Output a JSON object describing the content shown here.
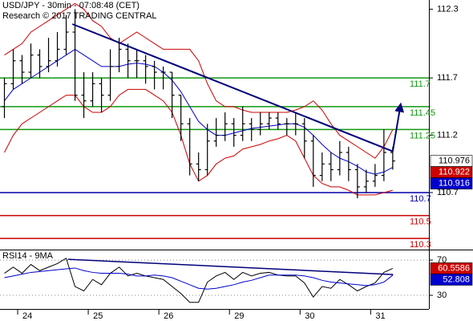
{
  "chart_data": [
    {
      "type": "ohlc",
      "title": "USD/JPY - 30min - 07:08:48 (CET)",
      "subtitle": "Research © 2017 TRADING CENTRAL",
      "x": [
        0,
        1,
        2,
        3,
        4,
        5,
        6,
        7,
        8,
        9,
        10,
        11,
        12,
        13,
        14,
        15,
        16,
        17,
        18,
        19,
        20,
        21,
        22,
        23,
        24,
        25,
        26,
        27,
        28,
        29,
        30,
        31,
        32,
        33,
        34,
        35,
        36,
        37,
        38,
        39,
        40,
        41,
        42,
        43,
        44
      ],
      "xlim": [
        -0.5,
        48.1
      ],
      "xticks": [
        {
          "value": 1.5,
          "label": "24"
        },
        {
          "value": 9.5,
          "label": "25"
        },
        {
          "value": 17.5,
          "label": "26"
        },
        {
          "value": 25.5,
          "label": "29"
        },
        {
          "value": 33.5,
          "label": "30"
        },
        {
          "value": 41.5,
          "label": "31"
        }
      ],
      "ylim": [
        110.21,
        112.38
      ],
      "yticks": [
        110.7,
        111.2,
        111.7,
        112.3
      ],
      "color": "#000000",
      "open": [
        111.45,
        111.65,
        111.85,
        111.75,
        111.9,
        111.8,
        111.85,
        111.95,
        112.1,
        111.55,
        111.5,
        111.65,
        111.55,
        111.8,
        111.95,
        111.85,
        111.85,
        111.8,
        111.75,
        111.75,
        111.55,
        111.3,
        110.95,
        110.9,
        111.15,
        111.2,
        111.3,
        111.2,
        111.3,
        111.25,
        111.3,
        111.35,
        111.3,
        111.3,
        111.3,
        111.15,
        110.85,
        110.95,
        110.9,
        111.05,
        110.9,
        110.75,
        110.8,
        110.85,
        111.05
      ],
      "high": [
        111.7,
        111.95,
        111.9,
        112.0,
        111.95,
        112.05,
        112.1,
        112.25,
        112.3,
        111.75,
        111.75,
        111.7,
        111.95,
        112.05,
        112.0,
        111.95,
        111.9,
        111.85,
        111.8,
        111.75,
        111.55,
        111.35,
        111.05,
        111.3,
        111.35,
        111.4,
        111.35,
        111.45,
        111.35,
        111.4,
        111.4,
        111.4,
        111.35,
        111.4,
        111.35,
        111.2,
        111.05,
        111.05,
        111.15,
        111.1,
        110.95,
        110.9,
        110.95,
        111.25,
        111.1
      ],
      "low": [
        111.35,
        111.6,
        111.65,
        111.7,
        111.7,
        111.75,
        111.8,
        111.9,
        111.5,
        111.35,
        111.45,
        111.4,
        111.5,
        111.75,
        111.7,
        111.7,
        111.65,
        111.6,
        111.6,
        111.35,
        111.15,
        110.85,
        110.8,
        110.85,
        111.1,
        111.15,
        111.1,
        111.15,
        111.15,
        111.2,
        111.25,
        111.25,
        111.2,
        111.2,
        111.0,
        110.75,
        110.8,
        110.8,
        110.85,
        110.8,
        110.65,
        110.7,
        110.75,
        110.8,
        110.9
      ],
      "close": [
        111.65,
        111.85,
        111.75,
        111.9,
        111.8,
        111.85,
        111.95,
        112.1,
        111.55,
        111.5,
        111.65,
        111.55,
        111.8,
        111.95,
        111.85,
        111.85,
        111.8,
        111.75,
        111.75,
        111.55,
        111.3,
        110.95,
        110.9,
        111.15,
        111.2,
        111.3,
        111.2,
        111.3,
        111.25,
        111.3,
        111.35,
        111.3,
        111.3,
        111.3,
        111.15,
        110.85,
        110.95,
        110.9,
        111.05,
        110.9,
        110.75,
        110.8,
        110.85,
        111.05,
        110.976
      ],
      "lines": [
        {
          "color": "#cc0000",
          "values": [
            111.9,
            111.95,
            112.0,
            112.1,
            112.15,
            112.2,
            112.25,
            112.3,
            112.35,
            112.3,
            112.2,
            112.15,
            112.05,
            112.0,
            112.05,
            112.1,
            112.05,
            112.0,
            111.95,
            111.95,
            111.95,
            111.95,
            111.85,
            111.65,
            111.5,
            111.45,
            111.45,
            111.42,
            111.4,
            111.4,
            111.4,
            111.4,
            111.4,
            111.42,
            111.45,
            111.5,
            111.42,
            111.3,
            111.2,
            111.15,
            111.1,
            111.05,
            111.0,
            111.1,
            111.25
          ]
        },
        {
          "color": "#cc0000",
          "values": [
            111.05,
            111.2,
            111.3,
            111.35,
            111.4,
            111.45,
            111.5,
            111.55,
            111.55,
            111.45,
            111.4,
            111.4,
            111.45,
            111.55,
            111.6,
            111.6,
            111.6,
            111.55,
            111.5,
            111.4,
            111.2,
            110.95,
            110.8,
            110.85,
            110.95,
            111.0,
            111.02,
            111.08,
            111.1,
            111.12,
            111.15,
            111.17,
            111.2,
            111.15,
            111.0,
            110.85,
            110.78,
            110.75,
            110.75,
            110.72,
            110.68,
            110.68,
            110.68,
            110.7,
            110.72
          ]
        },
        {
          "color": "#0000cc",
          "values": [
            111.5,
            111.6,
            111.65,
            111.7,
            111.75,
            111.8,
            111.85,
            111.9,
            111.95,
            111.9,
            111.85,
            111.8,
            111.8,
            111.8,
            111.82,
            111.83,
            111.82,
            111.8,
            111.75,
            111.68,
            111.58,
            111.45,
            111.32,
            111.25,
            111.2,
            111.2,
            111.22,
            111.24,
            111.26,
            111.27,
            111.28,
            111.29,
            111.3,
            111.3,
            111.27,
            111.2,
            111.12,
            111.05,
            111.0,
            110.97,
            110.93,
            110.88,
            110.86,
            110.88,
            110.92
          ]
        }
      ],
      "levels": [
        {
          "value": 111.7,
          "color": "#119911"
        },
        {
          "value": 111.45,
          "color": "#119911"
        },
        {
          "value": 111.25,
          "color": "#119911"
        },
        {
          "value": 110.7,
          "color": "#0000aa"
        },
        {
          "value": 110.5,
          "color": "#cc0000"
        },
        {
          "value": 110.3,
          "color": "#cc0000"
        }
      ],
      "trendlines": [
        {
          "x": [
            7.7,
            44.0
          ],
          "y": [
            112.17,
            111.06
          ],
          "color": "#00007a"
        }
      ],
      "arrow": {
        "x": [
          44.0,
          44.9
        ],
        "y": [
          111.06,
          111.47
        ],
        "color": "#00007a"
      },
      "price_tags": [
        {
          "value": 110.976,
          "color": "#ffffff",
          "text_color": "#000000"
        },
        {
          "value": 110.922,
          "color": "#cc0000",
          "text_color": "#ffffff"
        },
        {
          "value": 110.916,
          "color": "#0000cc",
          "text_color": "#ffffff"
        }
      ]
    },
    {
      "type": "line",
      "title": "RSI14 - 9MA",
      "ylim": [
        14.5,
        81
      ],
      "yticks": [
        30,
        70
      ],
      "grid": true,
      "series": [
        {
          "color": "#000000",
          "values": [
            55,
            62,
            55,
            65,
            58,
            62,
            66,
            72,
            40,
            35,
            48,
            42,
            55,
            62,
            52,
            55,
            52,
            50,
            48,
            40,
            32,
            22,
            22,
            45,
            52,
            56,
            48,
            56,
            52,
            55,
            56,
            53,
            52,
            52,
            44,
            28,
            40,
            38,
            48,
            42,
            35,
            40,
            44,
            56,
            60.5586
          ]
        },
        {
          "color": "#0000cc",
          "values": [
            50,
            52,
            54,
            56,
            57,
            58,
            59,
            60,
            61,
            58,
            56,
            55,
            55,
            55,
            54,
            52,
            52,
            53,
            52,
            50,
            46,
            42,
            38,
            37,
            38,
            40,
            42,
            45,
            47,
            50,
            53,
            53,
            53,
            53,
            52,
            50,
            47,
            45,
            44,
            43,
            42,
            41,
            42,
            45,
            52.808
          ]
        }
      ],
      "trendlines": [
        {
          "x": [
            7.2,
            44.05
          ],
          "y": [
            70.9,
            53.6
          ],
          "color": "#00007a"
        }
      ],
      "price_tags": [
        {
          "value": 60.5586,
          "color": "#cc0000",
          "text_color": "#ffffff"
        },
        {
          "value": 52.808,
          "color": "#0000cc",
          "text_color": "#ffffff"
        }
      ]
    }
  ]
}
